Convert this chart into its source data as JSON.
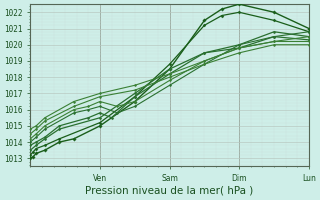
{
  "xlabel": "Pression niveau de la mer( hPa )",
  "bg_color": "#ceeee8",
  "grid_major_color": "#b8c8c0",
  "grid_minor_color": "#ccddd8",
  "ylim": [
    1012.5,
    1022.5
  ],
  "yticks": [
    1013,
    1014,
    1015,
    1016,
    1017,
    1018,
    1019,
    1020,
    1021,
    1022
  ],
  "xlim": [
    0,
    96
  ],
  "xtick_positions": [
    24,
    48,
    72,
    96
  ],
  "xtick_labels": [
    "Ven",
    "Sam",
    "Dim",
    "Lun"
  ],
  "vline_positions": [
    24,
    48,
    72,
    96
  ],
  "lines": [
    {
      "x": [
        0,
        1,
        2,
        5,
        10,
        15,
        24,
        36,
        48,
        60,
        66,
        72,
        84,
        96
      ],
      "y": [
        1013.0,
        1013.1,
        1013.3,
        1013.5,
        1014.0,
        1014.2,
        1015.0,
        1016.5,
        1018.5,
        1021.5,
        1022.2,
        1022.5,
        1022.0,
        1021.0
      ],
      "color": "#1a5e1a",
      "lw": 1.0,
      "marker": "D",
      "ms": 1.8
    },
    {
      "x": [
        0,
        1,
        2,
        5,
        10,
        24,
        36,
        48,
        60,
        66,
        72,
        84,
        96
      ],
      "y": [
        1013.2,
        1013.4,
        1013.6,
        1013.8,
        1014.2,
        1015.2,
        1016.8,
        1018.8,
        1021.2,
        1021.8,
        1022.0,
        1021.5,
        1020.8
      ],
      "color": "#1a5e1a",
      "lw": 0.9,
      "marker": "D",
      "ms": 1.6
    },
    {
      "x": [
        0,
        2,
        5,
        10,
        24,
        36,
        48,
        60,
        72,
        84,
        96
      ],
      "y": [
        1013.5,
        1013.8,
        1014.2,
        1014.8,
        1015.5,
        1017.0,
        1018.5,
        1019.5,
        1019.8,
        1020.5,
        1020.3
      ],
      "color": "#2a7030",
      "lw": 0.9,
      "marker": "D",
      "ms": 1.5
    },
    {
      "x": [
        0,
        2,
        5,
        10,
        20,
        24,
        28,
        36,
        48,
        60,
        72,
        84,
        96
      ],
      "y": [
        1013.8,
        1014.0,
        1014.3,
        1015.0,
        1015.5,
        1015.8,
        1015.5,
        1016.8,
        1018.2,
        1019.5,
        1020.0,
        1020.8,
        1020.5
      ],
      "color": "#2a7030",
      "lw": 0.9,
      "marker": "D",
      "ms": 1.5
    },
    {
      "x": [
        0,
        2,
        5,
        15,
        20,
        24,
        30,
        36,
        48,
        60,
        72,
        84,
        96
      ],
      "y": [
        1014.0,
        1014.3,
        1014.8,
        1015.8,
        1016.0,
        1016.2,
        1015.8,
        1016.2,
        1017.5,
        1018.8,
        1020.0,
        1020.5,
        1020.8
      ],
      "color": "#2a7030",
      "lw": 0.8,
      "marker": "D",
      "ms": 1.4
    },
    {
      "x": [
        0,
        2,
        5,
        15,
        20,
        24,
        30,
        36,
        48,
        60,
        72,
        84,
        96
      ],
      "y": [
        1014.2,
        1014.5,
        1015.0,
        1016.0,
        1016.2,
        1016.5,
        1016.2,
        1016.5,
        1017.8,
        1019.0,
        1019.8,
        1020.2,
        1020.5
      ],
      "color": "#3a8035",
      "lw": 0.8,
      "marker": "D",
      "ms": 1.4
    },
    {
      "x": [
        0,
        2,
        5,
        15,
        24,
        36,
        48,
        60,
        72,
        84,
        96
      ],
      "y": [
        1014.5,
        1014.8,
        1015.3,
        1016.2,
        1016.8,
        1017.2,
        1018.0,
        1018.8,
        1019.5,
        1020.0,
        1020.0
      ],
      "color": "#3a8035",
      "lw": 0.8,
      "marker": "D",
      "ms": 1.4
    },
    {
      "x": [
        0,
        2,
        5,
        15,
        24,
        36,
        48,
        60,
        72,
        84,
        96
      ],
      "y": [
        1014.8,
        1015.0,
        1015.5,
        1016.5,
        1017.0,
        1017.5,
        1018.2,
        1019.0,
        1019.8,
        1020.2,
        1020.2
      ],
      "color": "#3a8035",
      "lw": 0.8,
      "marker": "D",
      "ms": 1.4
    }
  ],
  "tick_color": "#1a5020",
  "label_color": "#1a5020",
  "tick_fontsize": 5.5,
  "label_fontsize": 7.5
}
